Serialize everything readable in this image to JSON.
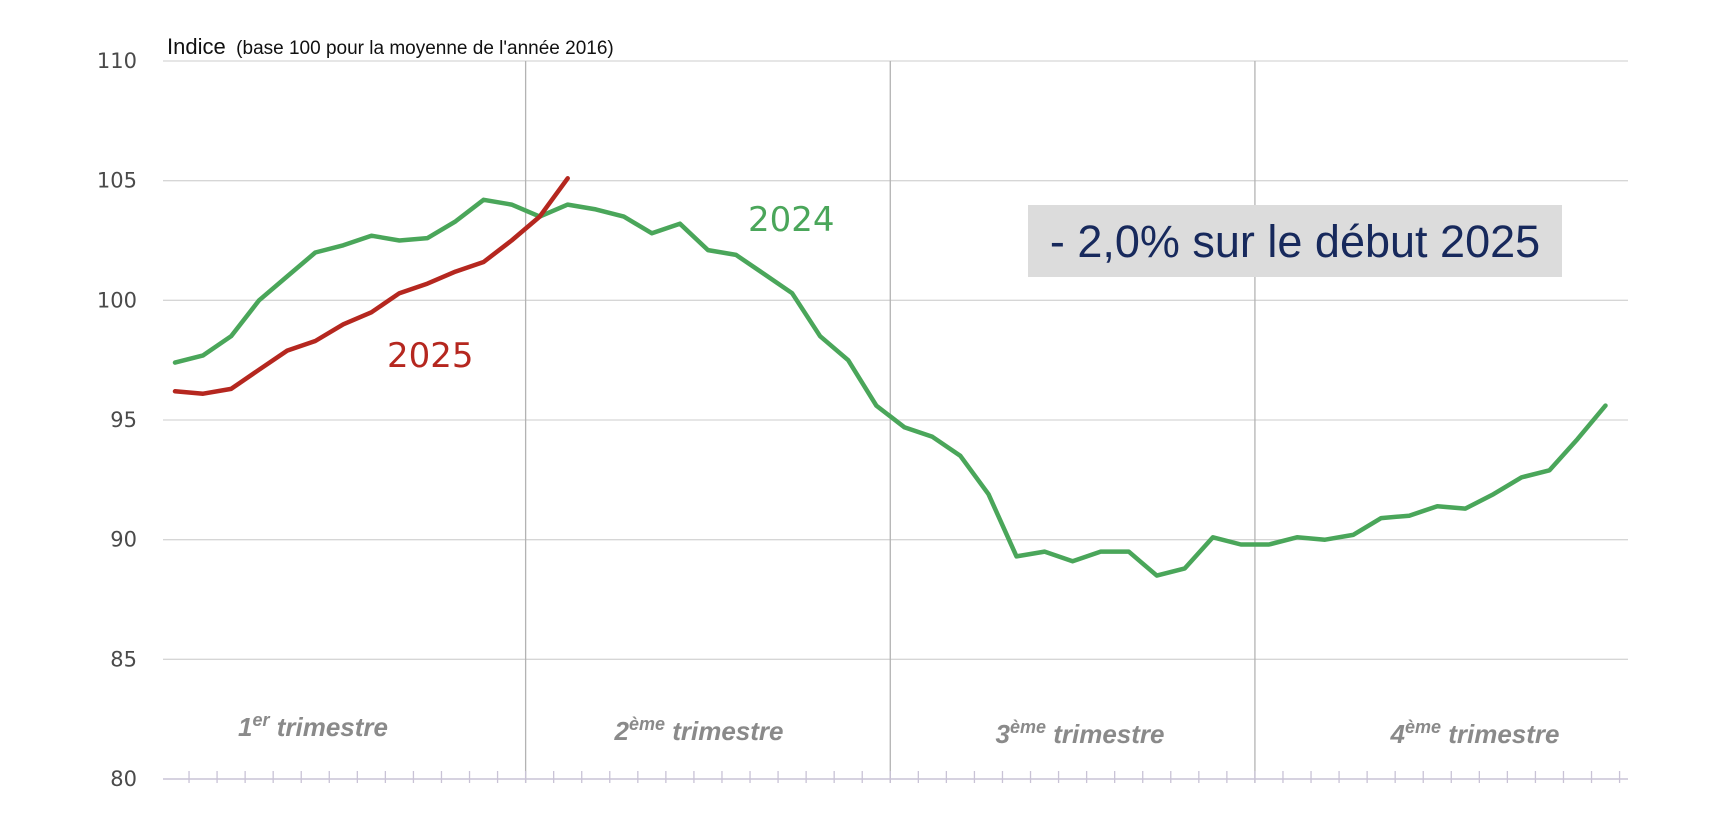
{
  "chart_data": {
    "type": "line",
    "ylabel": "Indice",
    "ylabel_note": "(base 100 pour la moyenne de l'année 2016)",
    "ylim": [
      80,
      110
    ],
    "yticks": [
      "80",
      "85",
      "90",
      "95",
      "100",
      "105",
      "110"
    ],
    "grid": true,
    "x_unit": "week",
    "x_range": [
      1,
      53
    ],
    "quarters": [
      {
        "prefix": "1",
        "sup": "er",
        "suffix": " trimestre"
      },
      {
        "prefix": "2",
        "sup": "ème",
        "suffix": " trimestre"
      },
      {
        "prefix": "3",
        "sup": "ème",
        "suffix": " trimestre"
      },
      {
        "prefix": "4",
        "sup": "ème",
        "suffix": " trimestre"
      }
    ],
    "series": [
      {
        "name": "2024",
        "color": "#4aa65a",
        "x": [
          1,
          2,
          3,
          4,
          5,
          6,
          7,
          8,
          9,
          10,
          11,
          12,
          13,
          14,
          15,
          16,
          17,
          18,
          19,
          20,
          21,
          22,
          23,
          24,
          25,
          26,
          27,
          28,
          29,
          30,
          31,
          32,
          33,
          34,
          35,
          36,
          37,
          38,
          39,
          40,
          41,
          42,
          43,
          44,
          45,
          46,
          47,
          48,
          49,
          50,
          51,
          52,
          53
        ],
        "values": [
          97.4,
          97.7,
          98.5,
          100.0,
          101.0,
          102.0,
          102.3,
          102.7,
          102.5,
          102.6,
          103.3,
          104.2,
          104.0,
          103.5,
          104.0,
          103.8,
          103.5,
          102.8,
          103.2,
          102.1,
          101.9,
          101.1,
          100.3,
          98.5,
          97.5,
          95.6,
          94.7,
          94.3,
          93.5,
          91.9,
          89.3,
          89.5,
          89.1,
          89.5,
          89.5,
          88.5,
          88.8,
          90.1,
          89.8,
          89.8,
          90.1,
          90.0,
          90.2,
          90.9,
          91.0,
          91.4,
          91.3,
          91.9,
          92.6,
          92.9,
          94.2,
          95.6,
          null
        ]
      },
      {
        "name": "2025",
        "color": "#b5271f",
        "x": [
          1,
          2,
          3,
          4,
          5,
          6,
          7,
          8,
          9,
          10,
          11,
          12,
          13,
          14,
          15
        ],
        "values": [
          96.2,
          96.1,
          96.3,
          97.1,
          97.9,
          98.3,
          99.0,
          99.5,
          100.3,
          100.7,
          101.2,
          101.6,
          102.5,
          103.5,
          105.1
        ]
      }
    ],
    "annotation": "- 2,0% sur le début 2025"
  },
  "colors": {
    "grid": "#d6d6d6",
    "quarter_divider": "#b3b3b3",
    "axis": "#c9c3d6",
    "annotation_bg": "#dcdcdc",
    "annotation_text": "#17295c"
  }
}
